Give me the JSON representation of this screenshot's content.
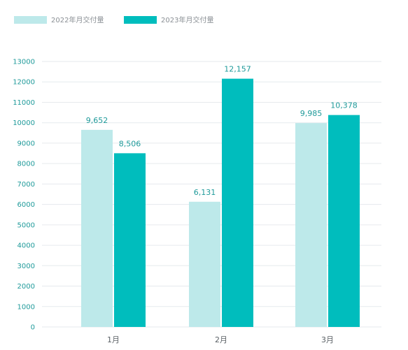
{
  "chart_data": {
    "type": "bar",
    "categories": [
      "1月",
      "2月",
      "3月"
    ],
    "series": [
      {
        "name": "2022年月交付量",
        "values": [
          9652,
          6131,
          9985
        ],
        "labels": [
          "9,652",
          "6,131",
          "9,985"
        ],
        "color": "#bde9ea"
      },
      {
        "name": "2023年月交付量",
        "values": [
          8506,
          12157,
          10378
        ],
        "labels": [
          "8,506",
          "12,157",
          "10,378"
        ],
        "color": "#00bdbd"
      }
    ],
    "ylim": [
      0,
      13000
    ],
    "yticks": [
      0,
      1000,
      2000,
      3000,
      4000,
      5000,
      6000,
      7000,
      8000,
      9000,
      10000,
      11000,
      12000,
      13000
    ],
    "xlabel": "",
    "ylabel": "",
    "grid": true,
    "legend_position": "top-left",
    "colors": {
      "tick": "#1f9a9a",
      "grid": "#e6eaed",
      "category": "#5b6166",
      "legend_text": "#8a8f94"
    }
  }
}
